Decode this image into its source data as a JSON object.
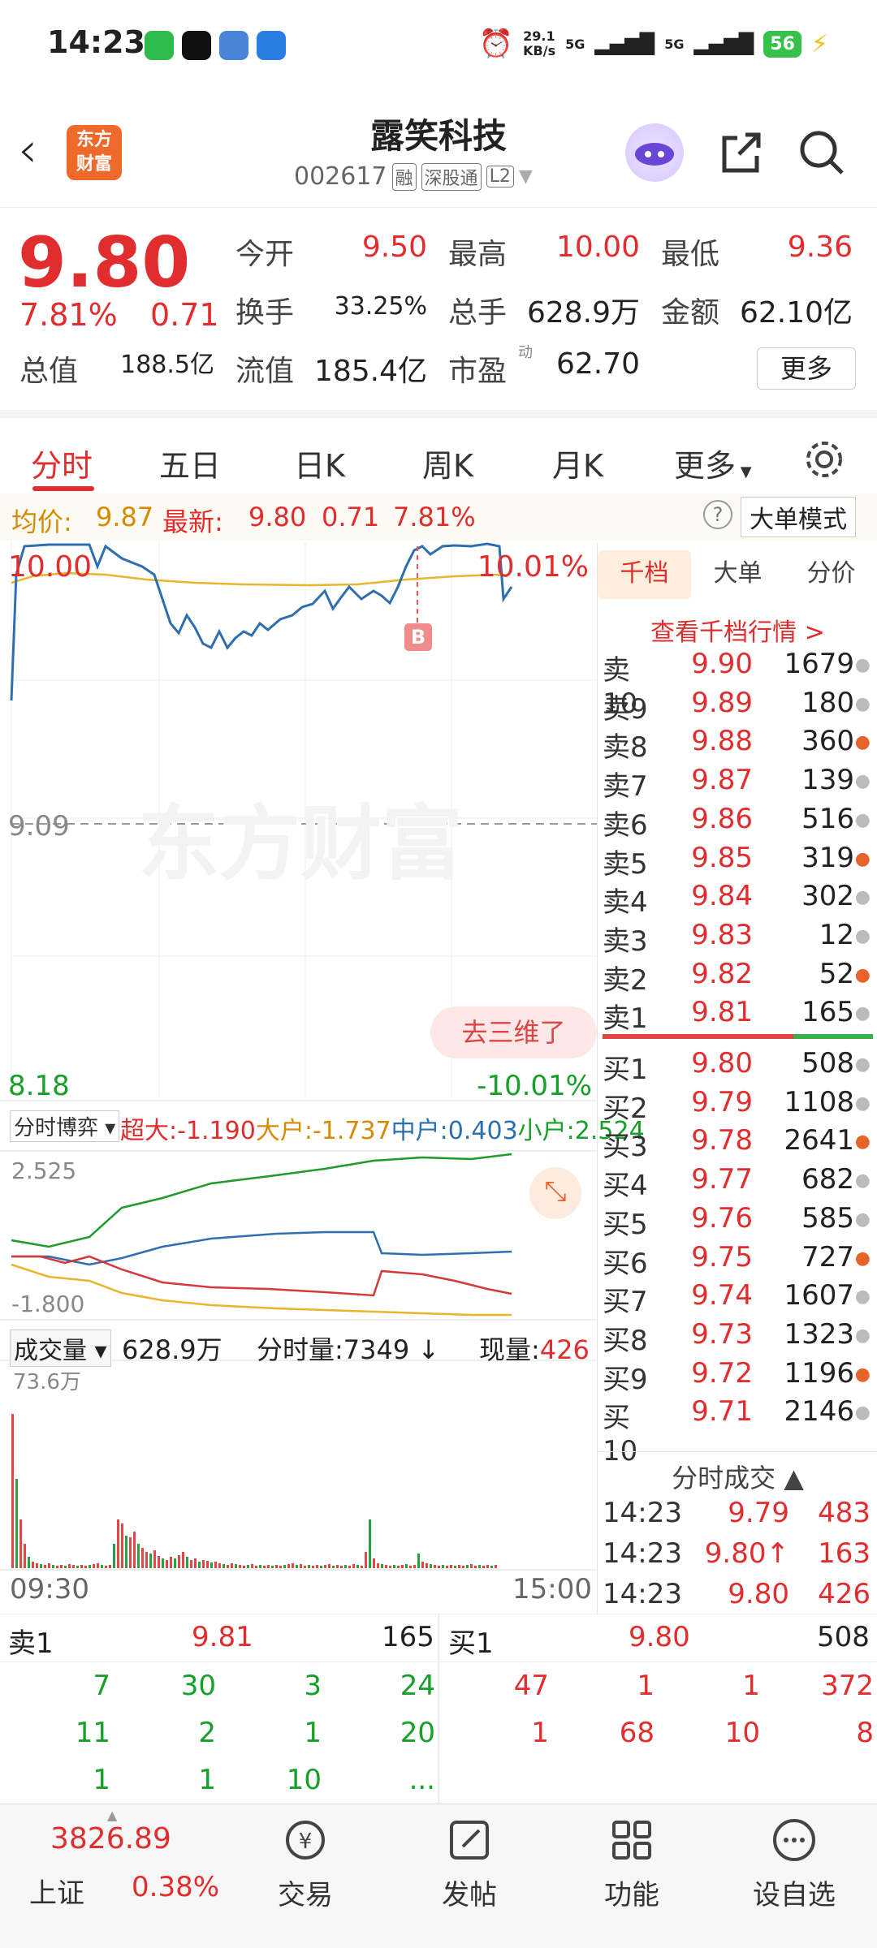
{
  "status": {
    "time": "14:23",
    "net_speed": "29.1\nKB/s",
    "sig1": "5G",
    "sig2": "5G",
    "battery": "56"
  },
  "header": {
    "title": "露笑科技",
    "code": "002617",
    "tags": [
      "融",
      "深股通",
      "L2"
    ],
    "logo_text": "东方\n财富"
  },
  "quote": {
    "price": "9.80",
    "pct": "7.81%",
    "change": "0.71",
    "cells": [
      {
        "label": "今开",
        "value": "9.50",
        "color": "red"
      },
      {
        "label": "最高",
        "value": "10.00",
        "color": "red"
      },
      {
        "label": "最低",
        "value": "9.36",
        "color": "red"
      },
      {
        "label": "换手",
        "value": "33.25%",
        "color": "dark"
      },
      {
        "label": "总手",
        "value": "628.9万",
        "color": "dark"
      },
      {
        "label": "金额",
        "value": "62.10亿",
        "color": "dark"
      },
      {
        "label": "总值",
        "value": "188.5亿",
        "color": "dark"
      },
      {
        "label": "流值",
        "value": "185.4亿",
        "color": "dark"
      },
      {
        "label": "市盈",
        "value": "62.70",
        "color": "dark"
      }
    ],
    "more": "更多",
    "pe_sup": "动"
  },
  "tabs": [
    "分时",
    "五日",
    "日K",
    "周K",
    "月K",
    "更多"
  ],
  "infobar": {
    "avg_label": "均价:",
    "avg": "9.87",
    "latest_label": "最新:",
    "latest": "9.80",
    "chg": "0.71",
    "pct": "7.81%",
    "big_order": "大单模式"
  },
  "chart": {
    "high": "10.00",
    "high_pct": "10.01%",
    "mid": "9.09",
    "low": "8.18",
    "low_pct": "-10.01%",
    "watermark": "东方财富",
    "marker": "B",
    "to3d": "去三维了",
    "game_label": "分时博弈",
    "game": [
      {
        "k": "超大:",
        "v": "-1.190",
        "color": "red"
      },
      {
        "k": "大户:",
        "v": "-1.737",
        "color": "orange"
      },
      {
        "k": "中户:",
        "v": "0.403",
        "color": "blue"
      },
      {
        "k": "小户:",
        "v": "2.524",
        "color": "green"
      }
    ],
    "game_max": "2.525",
    "game_min": "-1.800",
    "vol_label": "成交量",
    "vol_total": "628.9万",
    "vol_min_label": "分时量:",
    "vol_min": "7349",
    "vol_now_label": "现量:",
    "vol_now": "426",
    "vol_max": "73.6万",
    "t_start": "09:30",
    "t_end": "15:00"
  },
  "orderbook": {
    "tabs": [
      "千档",
      "大单",
      "分价"
    ],
    "link": "查看千档行情 >",
    "sells": [
      [
        "卖10",
        "9.90",
        "1679"
      ],
      [
        "卖9",
        "9.89",
        "180"
      ],
      [
        "卖8",
        "9.88",
        "360"
      ],
      [
        "卖7",
        "9.87",
        "139"
      ],
      [
        "卖6",
        "9.86",
        "516"
      ],
      [
        "卖5",
        "9.85",
        "319"
      ],
      [
        "卖4",
        "9.84",
        "302"
      ],
      [
        "卖3",
        "9.83",
        "12"
      ],
      [
        "卖2",
        "9.82",
        "52"
      ],
      [
        "卖1",
        "9.81",
        "165"
      ]
    ],
    "buys": [
      [
        "买1",
        "9.80",
        "508"
      ],
      [
        "买2",
        "9.79",
        "1108"
      ],
      [
        "买3",
        "9.78",
        "2641"
      ],
      [
        "买4",
        "9.77",
        "682"
      ],
      [
        "买5",
        "9.76",
        "585"
      ],
      [
        "买6",
        "9.75",
        "727"
      ],
      [
        "买7",
        "9.74",
        "1607"
      ],
      [
        "买8",
        "9.73",
        "1323"
      ],
      [
        "买9",
        "9.72",
        "1196"
      ],
      [
        "买10",
        "9.71",
        "2146"
      ]
    ],
    "trades_title": "分时成交",
    "trades": [
      [
        "14:23",
        "9.79",
        "483"
      ],
      [
        "14:23",
        "9.80↑",
        "163"
      ],
      [
        "14:23",
        "9.80",
        "426"
      ]
    ]
  },
  "book": {
    "sell_label": "卖1",
    "sell_price": "9.81",
    "sell_vol": "165",
    "buy_label": "买1",
    "buy_price": "9.80",
    "buy_vol": "508",
    "sell_rows": [
      [
        "7",
        "30",
        "3",
        "24"
      ],
      [
        "11",
        "2",
        "1",
        "20"
      ],
      [
        "1",
        "1",
        "10",
        "..."
      ]
    ],
    "buy_rows": [
      [
        "47",
        "1",
        "1",
        "372"
      ],
      [
        "1",
        "68",
        "10",
        "8"
      ]
    ]
  },
  "nav": {
    "index_value": "3826.89",
    "index_name": "上证",
    "index_pct": "0.38%",
    "items": [
      "交易",
      "发帖",
      "功能",
      "设自选"
    ]
  }
}
